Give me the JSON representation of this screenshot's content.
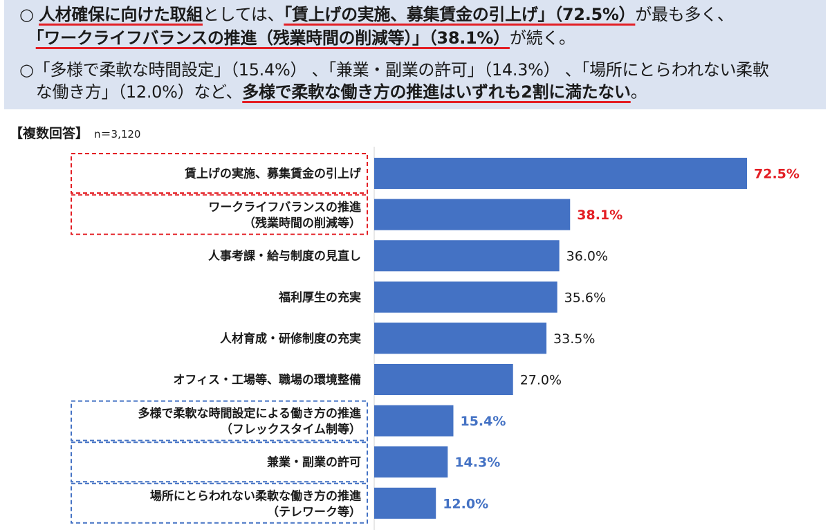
{
  "summary": {
    "line1": [
      {
        "t": "○ ",
        "s": "plain"
      },
      {
        "t": "人材確保に向けた取組",
        "s": "ul"
      },
      {
        "t": "としては、",
        "s": "plain"
      },
      {
        "t": "「賃上げの実施、募集賃金の引上げ」（72.5%）",
        "s": "ul"
      },
      {
        "t": "が最も多く、",
        "s": "plain"
      }
    ],
    "line2": [
      {
        "t": "　",
        "s": "plain"
      },
      {
        "t": "「ワークライフバランスの推進（残業時間の削減等）」（38.1%）",
        "s": "ul"
      },
      {
        "t": "が続く。",
        "s": "plain"
      }
    ],
    "line3": [
      {
        "t": "○「多様で柔軟な時間設定」（15.4%） 、「兼業・副業の許可」（14.3%） 、「場所にとらわれない柔軟",
        "s": "plain"
      }
    ],
    "line4": [
      {
        "t": "　な働き方」（12.0%）など、",
        "s": "plain"
      },
      {
        "t": "多様で柔軟な働き方の推進はいずれも2割に満たない",
        "s": "ul"
      },
      {
        "t": "。",
        "s": "plain"
      }
    ]
  },
  "response": {
    "title": "【複数回答】",
    "n": "n＝3,120"
  },
  "colors": {
    "bar": "#4472c4",
    "red": "#e31e24",
    "blue": "#4472c4",
    "dash_red": "#e31e24",
    "dash_blue": "#4472c4"
  },
  "chart_data": {
    "type": "bar",
    "orientation": "horizontal",
    "categories": [
      [
        "賃上げの実施、募集賃金の引上げ"
      ],
      [
        "ワークライフバランスの推進",
        "（残業時間の削減等）"
      ],
      [
        "人事考課・給与制度の見直し"
      ],
      [
        "福利厚生の充実"
      ],
      [
        "人材育成・研修制度の充実"
      ],
      [
        "オフィス・工場等、職場の環境整備"
      ],
      [
        "多様で柔軟な時間設定による働き方の推進",
        "（フレックスタイム制等）"
      ],
      [
        "兼業・副業の許可"
      ],
      [
        "場所にとらわれない柔軟な働き方の推進",
        "（テレワーク等）"
      ]
    ],
    "values": [
      72.5,
      38.1,
      36.0,
      35.6,
      33.5,
      27.0,
      15.4,
      14.3,
      12.0
    ],
    "value_labels": [
      "72.5%",
      "38.1%",
      "36.0%",
      "35.6%",
      "33.5%",
      "27.0%",
      "15.4%",
      "14.3%",
      "12.0%"
    ],
    "highlight": [
      "red",
      "red",
      "none",
      "none",
      "none",
      "none",
      "blue",
      "blue",
      "blue"
    ],
    "xlim": [
      0,
      75
    ],
    "grid": false
  }
}
